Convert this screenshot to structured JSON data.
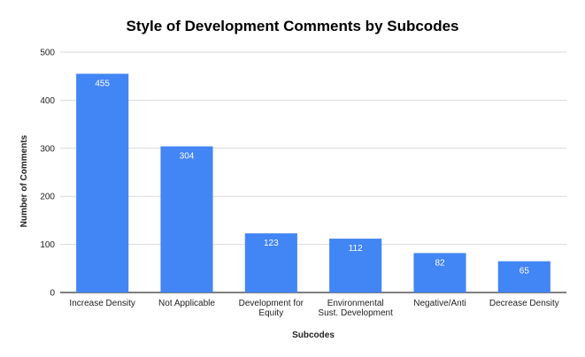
{
  "chart_data": {
    "type": "bar",
    "title": "Style of Development Comments by Subcodes",
    "xlabel": "Subcodes",
    "ylabel": "Number of Comments",
    "categories": [
      [
        "Increase Density"
      ],
      [
        "Not Applicable"
      ],
      [
        "Development for",
        "Equity"
      ],
      [
        "Environmental",
        "Sust. Development"
      ],
      [
        "Negative/Anti"
      ],
      [
        "Decrease Density"
      ]
    ],
    "values": [
      455,
      304,
      123,
      112,
      82,
      65
    ],
    "ylim": [
      0,
      500
    ],
    "yticks": [
      0,
      100,
      200,
      300,
      400,
      500
    ],
    "grid": true,
    "legend": "none",
    "colors": {
      "bar": "#4285f4",
      "grid": "#d9d9d9",
      "axis": "#333333"
    }
  }
}
